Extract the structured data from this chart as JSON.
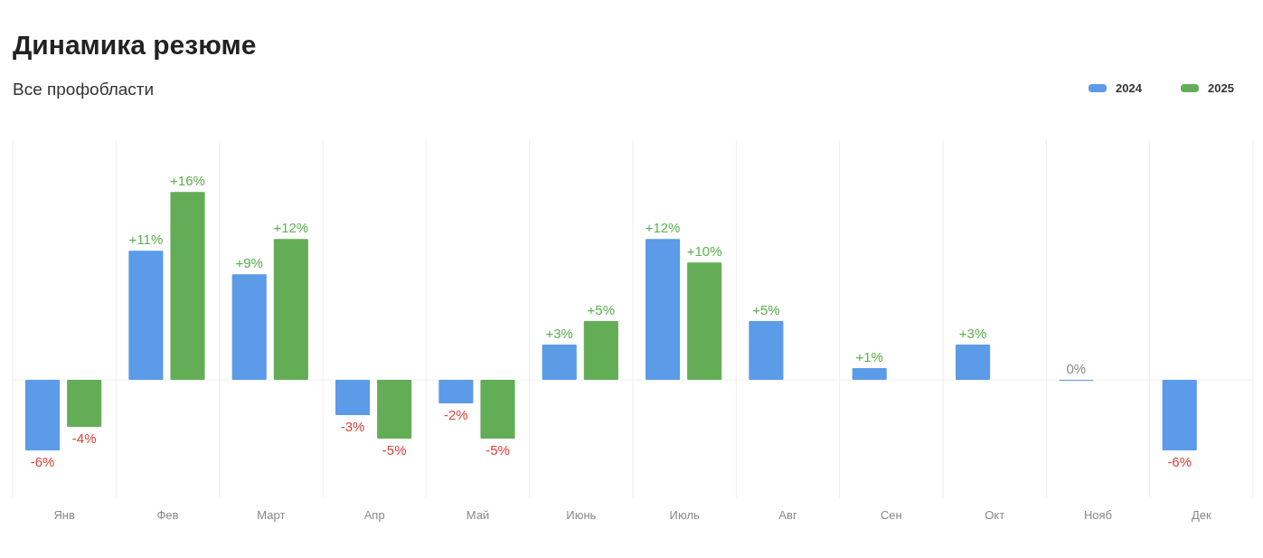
{
  "chart_data": {
    "type": "bar",
    "title": "Динамика резюме",
    "subtitle": "Все профобласти",
    "categories": [
      "Янв",
      "Фев",
      "Март",
      "Апр",
      "Май",
      "Июнь",
      "Июль",
      "Авг",
      "Сен",
      "Окт",
      "Нояб",
      "Дек"
    ],
    "series": [
      {
        "name": "2024",
        "color": "#5b9be8",
        "values": [
          -6,
          11,
          9,
          -3,
          -2,
          3,
          12,
          5,
          1,
          3,
          0,
          -6
        ],
        "value_labels": [
          "-6%",
          "+11%",
          "+9%",
          "-3%",
          "-2%",
          "+3%",
          "+12%",
          "+5%",
          "+1%",
          "+3%",
          "0%",
          "-6%"
        ]
      },
      {
        "name": "2025",
        "color": "#64ad57",
        "values": [
          -4,
          16,
          12,
          -5,
          -5,
          5,
          10,
          null,
          null,
          null,
          null,
          null
        ],
        "value_labels": [
          "-4%",
          "+16%",
          "+12%",
          "-5%",
          "-5%",
          "+5%",
          "+10%",
          null,
          null,
          null,
          null,
          null
        ]
      }
    ],
    "relative": false,
    "ylim": [
      -10,
      20.4
    ],
    "grid": "x",
    "legend": "top right",
    "tick_labels": "x"
  }
}
